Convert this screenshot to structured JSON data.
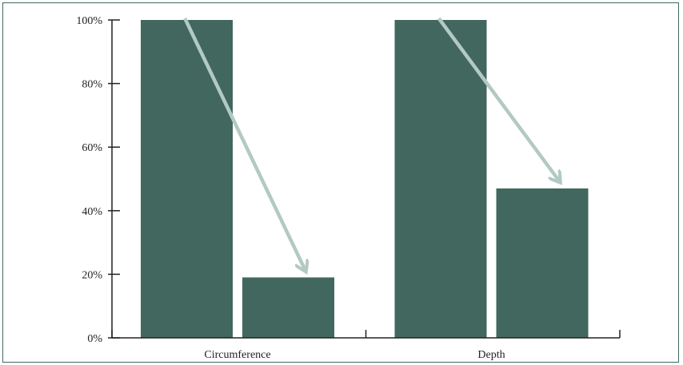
{
  "chart_data": {
    "type": "bar",
    "categories": [
      "Circumference",
      "Depth"
    ],
    "series": [
      {
        "values": [
          100,
          100
        ]
      },
      {
        "values": [
          19,
          47
        ]
      }
    ],
    "ylim": [
      0,
      100
    ],
    "yticks": [
      "0%",
      "20%",
      "40%",
      "60%",
      "80%",
      "100%"
    ],
    "ytick_values": [
      0,
      20,
      40,
      60,
      80,
      100
    ],
    "grid": false,
    "annotations": [
      {
        "type": "arrow",
        "category": "Circumference",
        "from_series": 0,
        "to_series": 1
      },
      {
        "type": "arrow",
        "category": "Depth",
        "from_series": 0,
        "to_series": 1
      }
    ],
    "colors": {
      "bar": "#42675e",
      "arrow": "#b2c9c4",
      "axis": "#222222",
      "frame": "#3f6960"
    }
  }
}
